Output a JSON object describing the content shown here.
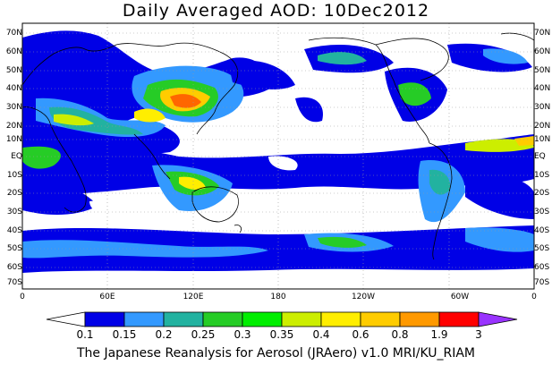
{
  "title": "Daily Averaged AOD: 10Dec2012",
  "map": {
    "lat_labels": [
      "70N",
      "60N",
      "50N",
      "40N",
      "30N",
      "20N",
      "10N",
      "EQ",
      "10S",
      "20S",
      "30S",
      "40S",
      "50S",
      "60S",
      "70S"
    ],
    "lon_labels": [
      "0",
      "60E",
      "120E",
      "180",
      "120W",
      "60W",
      "0"
    ]
  },
  "colorbar": {
    "labels": [
      "0.1",
      "0.15",
      "0.2",
      "0.25",
      "0.3",
      "0.35",
      "0.4",
      "0.6",
      "0.8",
      "1.9",
      "3"
    ],
    "colors": [
      "#0000e6",
      "#3399ff",
      "#22b2a0",
      "#26cc26",
      "#00ee00",
      "#ccee00",
      "#ffee00",
      "#ffcc00",
      "#ff9900",
      "#ff6600",
      "#ff0000",
      "#9933ff"
    ]
  },
  "footer": "The Japanese Reanalysis for Aerosol (JRAero) v1.0 MRI/KU_RIAM"
}
